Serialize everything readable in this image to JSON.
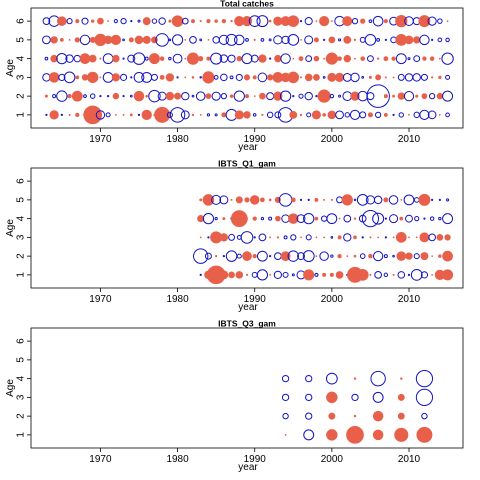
{
  "colors": {
    "positive": "#E8604A",
    "negative": "#1414C8",
    "frame": "#000000"
  },
  "chart_data": [
    {
      "type": "scatter",
      "title": "Total catches",
      "xlabel": "year",
      "ylabel": "Age",
      "xlim": [
        1961,
        2017
      ],
      "ylim": [
        0.3,
        6.7
      ],
      "xticks": [
        1970,
        1980,
        1990,
        2000,
        2010
      ],
      "yticks": [
        1,
        2,
        3,
        4,
        5,
        6
      ],
      "grid": false,
      "legend": "none",
      "years": [
        1963,
        2015
      ],
      "ages": [
        1,
        2,
        3,
        4,
        5,
        6
      ],
      "highlights": [
        {
          "year": 1969,
          "age": 1,
          "sign": 1,
          "size": 1.0
        },
        {
          "year": 1978,
          "age": 1,
          "sign": 1,
          "size": 0.85
        },
        {
          "year": 1980,
          "age": 1,
          "sign": -1,
          "size": 0.8
        },
        {
          "year": 1994,
          "age": 1,
          "sign": -1,
          "size": 0.8
        },
        {
          "year": 2006,
          "age": 2,
          "sign": -1,
          "size": 1.25
        },
        {
          "year": 1999,
          "age": 2,
          "sign": 1,
          "size": 0.7
        },
        {
          "year": 1978,
          "age": 5,
          "sign": -1,
          "size": 0.7
        },
        {
          "year": 1964,
          "age": 3,
          "sign": 1,
          "size": 0.55
        }
      ]
    },
    {
      "type": "scatter",
      "title": "IBTS_Q1_gam",
      "xlabel": "year",
      "ylabel": "Age",
      "xlim": [
        1961,
        2017
      ],
      "ylim": [
        0.3,
        6.7
      ],
      "xticks": [
        1970,
        1980,
        1990,
        2000,
        2010
      ],
      "yticks": [
        1,
        2,
        3,
        4,
        5,
        6
      ],
      "grid": false,
      "legend": "none",
      "years": [
        1983,
        2015
      ],
      "ages": [
        1,
        2,
        3,
        4,
        5
      ],
      "highlights": [
        {
          "year": 1985,
          "age": 1,
          "sign": 1,
          "size": 1.0
        },
        {
          "year": 1988,
          "age": 4,
          "sign": 1,
          "size": 0.9
        },
        {
          "year": 2005,
          "age": 4,
          "sign": -1,
          "size": 0.9
        },
        {
          "year": 1983,
          "age": 2,
          "sign": -1,
          "size": 0.8
        },
        {
          "year": 2003,
          "age": 1,
          "sign": 1,
          "size": 0.85
        },
        {
          "year": 1994,
          "age": 5,
          "sign": -1,
          "size": 0.7
        }
      ]
    },
    {
      "type": "scatter",
      "title": "IBTS_Q3_gam",
      "xlabel": "year",
      "ylabel": "Age",
      "xlim": [
        1961,
        2017
      ],
      "ylim": [
        0.3,
        6.7
      ],
      "xticks": [
        1970,
        1980,
        1990,
        2000,
        2010
      ],
      "yticks": [
        1,
        2,
        3,
        4,
        5,
        6
      ],
      "grid": false,
      "legend": "none",
      "points": [
        [
          1994,
          1,
          1,
          0.05
        ],
        [
          1994,
          2,
          -1,
          0.3
        ],
        [
          1994,
          3,
          -1,
          0.35
        ],
        [
          1994,
          4,
          -1,
          0.35
        ],
        [
          1997,
          1,
          -1,
          0.55
        ],
        [
          1997,
          2,
          -1,
          0.35
        ],
        [
          1997,
          3,
          -1,
          0.35
        ],
        [
          1997,
          4,
          -1,
          0.35
        ],
        [
          2000,
          1,
          1,
          0.6
        ],
        [
          2000,
          2,
          1,
          0.35
        ],
        [
          2000,
          3,
          1,
          0.6
        ],
        [
          2000,
          4,
          -1,
          0.6
        ],
        [
          2003,
          1,
          1,
          0.95
        ],
        [
          2003,
          2,
          1,
          0.1
        ],
        [
          2003,
          3,
          -1,
          0.35
        ],
        [
          2003,
          4,
          1,
          0.1
        ],
        [
          2006,
          1,
          1,
          0.55
        ],
        [
          2006,
          2,
          1,
          0.55
        ],
        [
          2006,
          3,
          -1,
          0.55
        ],
        [
          2006,
          4,
          -1,
          0.8
        ],
        [
          2009,
          1,
          1,
          0.75
        ],
        [
          2009,
          2,
          1,
          0.35
        ],
        [
          2009,
          3,
          1,
          0.35
        ],
        [
          2009,
          4,
          1,
          0.1
        ],
        [
          2012,
          1,
          1,
          0.85
        ],
        [
          2012,
          2,
          -1,
          0.3
        ],
        [
          2012,
          3,
          -1,
          0.9
        ],
        [
          2012,
          4,
          -1,
          0.9
        ]
      ]
    }
  ]
}
